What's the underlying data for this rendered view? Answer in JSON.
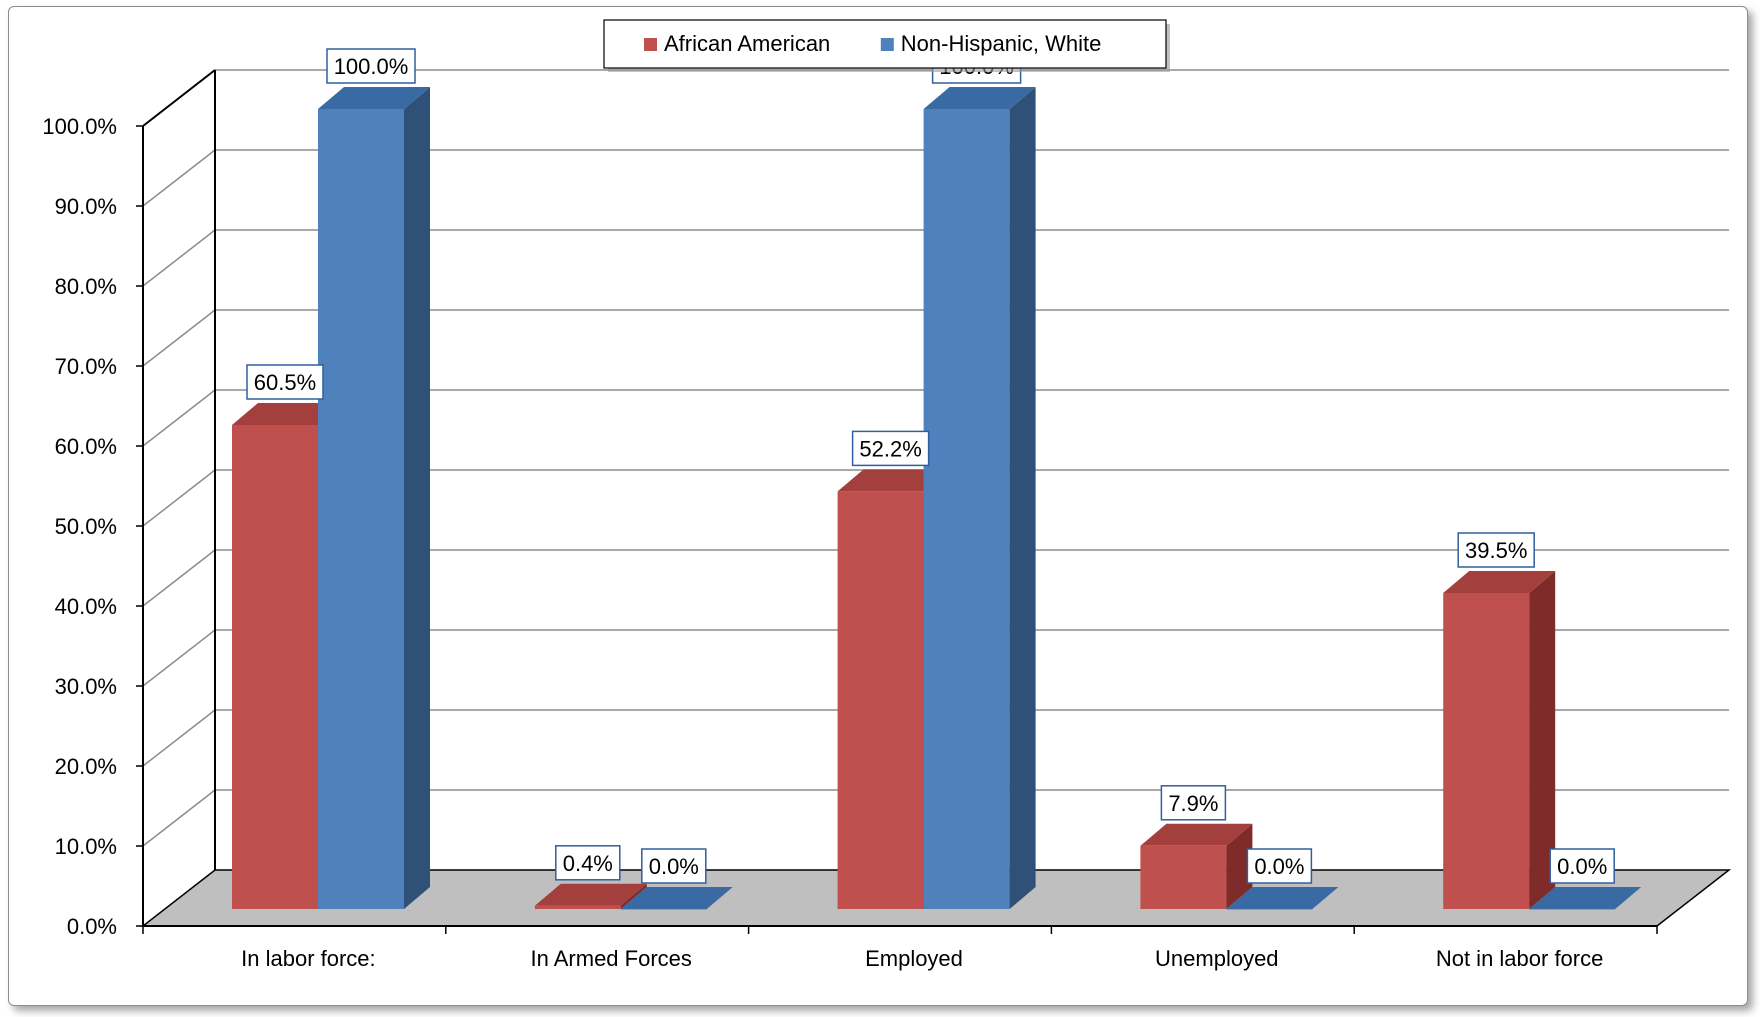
{
  "chart_data": {
    "type": "bar",
    "title": "",
    "xlabel": "",
    "ylabel": "",
    "ylim": [
      0,
      100
    ],
    "yticks": [
      0,
      10,
      20,
      30,
      40,
      50,
      60,
      70,
      80,
      90,
      100
    ],
    "tick_suffix": "%",
    "categories": [
      "In labor force:",
      "In Armed Forces",
      "Employed",
      "Unemployed",
      "Not in labor force"
    ],
    "series": [
      {
        "name": "African American",
        "values": [
          60.5,
          0.4,
          52.2,
          7.9,
          39.5
        ],
        "color": "#c0504d",
        "side_color": "#7f2b2a",
        "top_color": "#a33f3c"
      },
      {
        "name": "Non-Hispanic, White",
        "values": [
          100.0,
          0.0,
          100.0,
          0.0,
          0.0
        ],
        "color": "#4f81bd",
        "side_color": "#2f5178",
        "top_color": "#3a6aa3"
      }
    ],
    "data_labels": [
      [
        "60.5%",
        "0.4%",
        "52.2%",
        "7.9%",
        "39.5%"
      ],
      [
        "100.0%",
        "0.0%",
        "100.0%",
        "0.0%",
        "0.0%"
      ]
    ],
    "grid": true,
    "legend_position": "top-center",
    "colors": {
      "gridline": "#8c8c8c",
      "floor": "#bfbfbf",
      "axis": "#000000",
      "label_border": "#2f5f9e"
    }
  }
}
